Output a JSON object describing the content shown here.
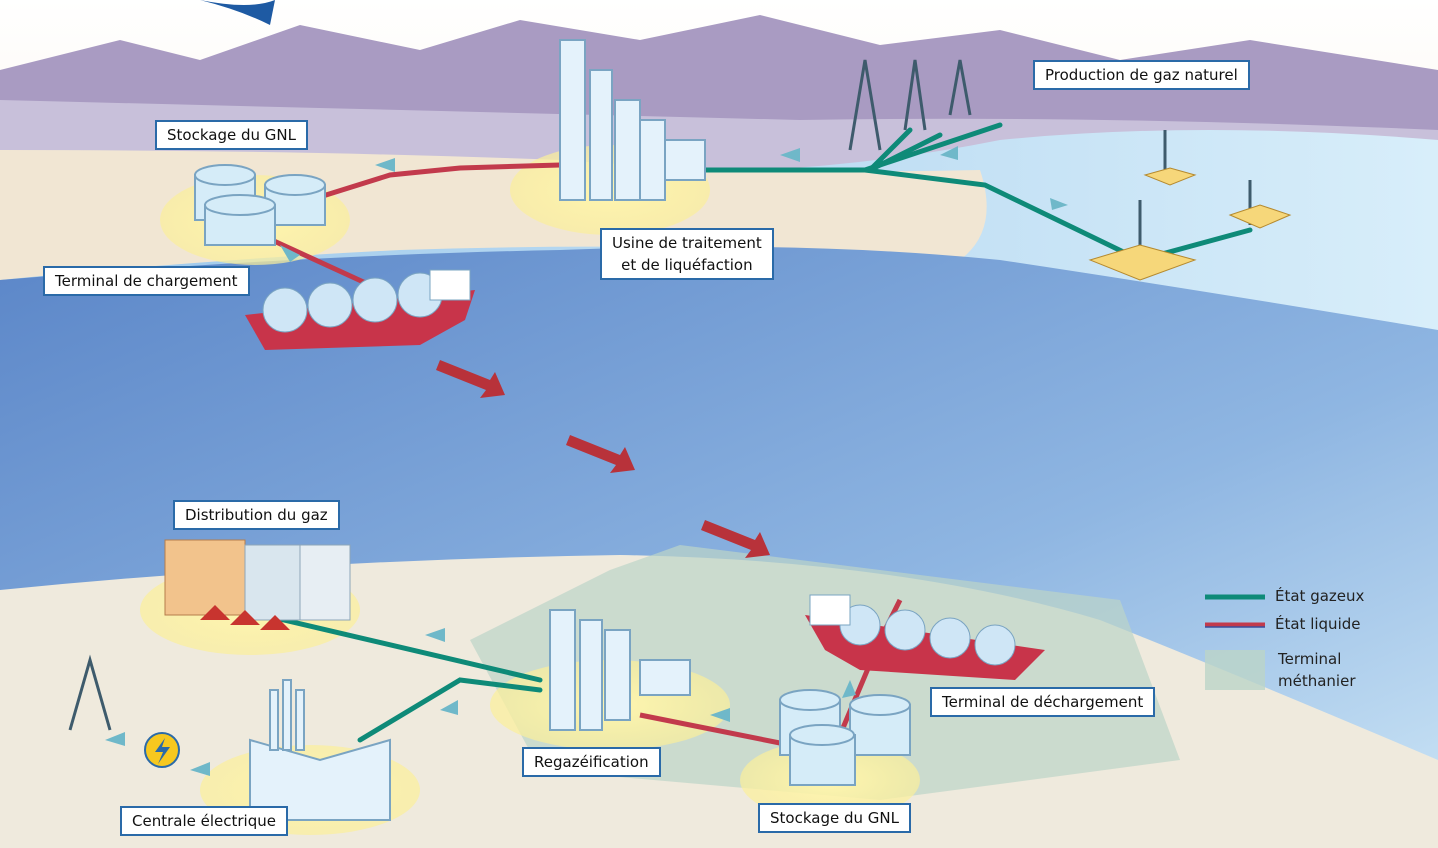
{
  "nodes": [
    {
      "lines": [
        "Production de gaz naturel"
      ]
    },
    {
      "lines": [
        "Stockage du GNL"
      ]
    },
    {
      "lines": [
        "Usine de traitement",
        "et de liquéfaction"
      ]
    },
    {
      "lines": [
        "Terminal de chargement"
      ]
    },
    {
      "lines": [
        "Distribution du gaz"
      ]
    },
    {
      "lines": [
        "Terminal de déchargement"
      ]
    },
    {
      "lines": [
        "Regazéification"
      ]
    },
    {
      "lines": [
        "Centrale électrique"
      ]
    },
    {
      "lines": [
        "Stockage du GNL"
      ]
    }
  ],
  "legend": [
    {
      "lines": [
        "État gazeux"
      ]
    },
    {
      "lines": [
        "État liquide"
      ]
    },
    {
      "lines": [
        "Terminal",
        "méthanier"
      ]
    }
  ]
}
